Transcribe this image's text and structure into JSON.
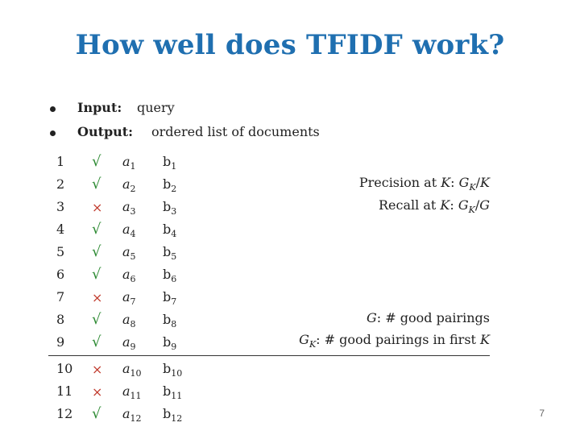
{
  "slide": {
    "title": "How well does TFIDF work?",
    "page_number": "7"
  },
  "bullets": [
    {
      "label": "Input:",
      "value": "query"
    },
    {
      "label": "Output:",
      "value": "ordered list of documents"
    }
  ],
  "rows": [
    {
      "n": "1",
      "mark": "check",
      "a": "a",
      "a_sub": "1",
      "b": "b",
      "b_sub": "1"
    },
    {
      "n": "2",
      "mark": "check",
      "a": "a",
      "a_sub": "2",
      "b": "b",
      "b_sub": "2"
    },
    {
      "n": "3",
      "mark": "cross",
      "a": "a",
      "a_sub": "3",
      "b": "b",
      "b_sub": "3"
    },
    {
      "n": "4",
      "mark": "check",
      "a": "a",
      "a_sub": "4",
      "b": "b",
      "b_sub": "4"
    },
    {
      "n": "5",
      "mark": "check",
      "a": "a",
      "a_sub": "5",
      "b": "b",
      "b_sub": "5"
    },
    {
      "n": "6",
      "mark": "check",
      "a": "a",
      "a_sub": "6",
      "b": "b",
      "b_sub": "6"
    },
    {
      "n": "7",
      "mark": "cross",
      "a": "a",
      "a_sub": "7",
      "b": "b",
      "b_sub": "7"
    },
    {
      "n": "8",
      "mark": "check",
      "a": "a",
      "a_sub": "8",
      "b": "b",
      "b_sub": "8"
    },
    {
      "n": "9",
      "mark": "check",
      "a": "a",
      "a_sub": "9",
      "b": "b",
      "b_sub": "9"
    },
    {
      "n": "10",
      "mark": "cross",
      "a": "a",
      "a_sub": "10",
      "b": "b",
      "b_sub": "10"
    },
    {
      "n": "11",
      "mark": "cross",
      "a": "a",
      "a_sub": "11",
      "b": "b",
      "b_sub": "11"
    },
    {
      "n": "12",
      "mark": "check",
      "a": "a",
      "a_sub": "12",
      "b": "b",
      "b_sub": "12"
    }
  ],
  "cutoff_after_row": 9,
  "annotations": {
    "precision": {
      "prefix": "Precision at ",
      "var": "K",
      "sep": ": ",
      "num": "G",
      "num_sub": "K",
      "op": "/",
      "den": "K"
    },
    "recall": {
      "prefix": "Recall at ",
      "var": "K",
      "sep": ": ",
      "num": "G",
      "num_sub": "K",
      "op": "/",
      "den": "G"
    },
    "g_def": {
      "var": "G",
      "text": ": # good pairings"
    },
    "gk_def": {
      "var": "G",
      "var_sub": "K",
      "text": ": # good pairings in first ",
      "tail": "K"
    }
  },
  "colors": {
    "title": "#1f6fb0",
    "check": "#2e8b34",
    "cross": "#c0392b"
  },
  "icons": {
    "check": "check-mark-icon",
    "cross": "cross-mark-icon"
  }
}
